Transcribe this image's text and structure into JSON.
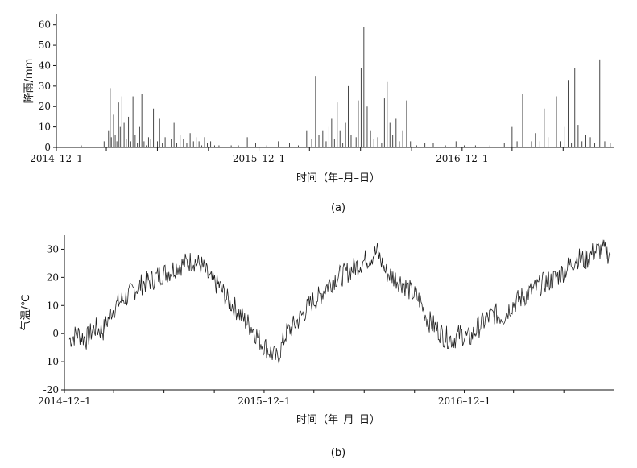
{
  "chart_data": [
    {
      "type": "bar",
      "panel": "(a)",
      "xlabel": "时间（年–月–日）",
      "ylabel": "降雨/mm",
      "ylim": [
        0,
        65
      ],
      "yticks": [
        0,
        10,
        20,
        30,
        40,
        50,
        60
      ],
      "xlim": [
        "2014-12-01",
        "2017-08-31"
      ],
      "xticks": [
        {
          "date": "2014-12-01",
          "label": "2014–12–1"
        },
        {
          "date": "2015-12-01",
          "label": "2015–12–1"
        },
        {
          "date": "2016-12-01",
          "label": "2016–12–1"
        }
      ],
      "grid": false,
      "series": [
        {
          "dates": [
            "2015-01-15",
            "2015-02-05",
            "2015-02-25",
            "2015-03-05",
            "2015-03-08",
            "2015-03-10",
            "2015-03-14",
            "2015-03-17",
            "2015-03-20",
            "2015-03-23",
            "2015-03-26",
            "2015-03-29",
            "2015-04-02",
            "2015-04-06",
            "2015-04-10",
            "2015-04-14",
            "2015-04-18",
            "2015-04-22",
            "2015-04-26",
            "2015-04-30",
            "2015-05-04",
            "2015-05-08",
            "2015-05-12",
            "2015-05-16",
            "2015-05-20",
            "2015-05-25",
            "2015-06-01",
            "2015-06-05",
            "2015-06-10",
            "2015-06-15",
            "2015-06-20",
            "2015-06-26",
            "2015-07-01",
            "2015-07-06",
            "2015-07-12",
            "2015-07-18",
            "2015-07-24",
            "2015-07-30",
            "2015-08-05",
            "2015-08-10",
            "2015-08-15",
            "2015-08-20",
            "2015-08-25",
            "2015-08-30",
            "2015-09-05",
            "2015-09-12",
            "2015-09-20",
            "2015-10-01",
            "2015-10-12",
            "2015-10-25",
            "2015-11-10",
            "2015-11-25",
            "2015-12-15",
            "2016-01-05",
            "2016-01-25",
            "2016-02-10",
            "2016-02-25",
            "2016-03-05",
            "2016-03-12",
            "2016-03-18",
            "2016-03-25",
            "2016-03-31",
            "2016-04-05",
            "2016-04-10",
            "2016-04-15",
            "2016-04-20",
            "2016-04-25",
            "2016-04-30",
            "2016-05-05",
            "2016-05-10",
            "2016-05-15",
            "2016-05-20",
            "2016-05-24",
            "2016-05-28",
            "2016-06-02",
            "2016-06-07",
            "2016-06-13",
            "2016-06-19",
            "2016-06-25",
            "2016-07-02",
            "2016-07-09",
            "2016-07-14",
            "2016-07-19",
            "2016-07-24",
            "2016-07-29",
            "2016-08-04",
            "2016-08-10",
            "2016-08-16",
            "2016-08-23",
            "2016-08-30",
            "2016-09-10",
            "2016-09-25",
            "2016-10-10",
            "2016-11-01",
            "2016-11-20",
            "2016-12-05",
            "2016-12-25",
            "2017-01-20",
            "2017-02-15",
            "2017-03-01",
            "2017-03-10",
            "2017-03-20",
            "2017-03-28",
            "2017-04-05",
            "2017-04-12",
            "2017-04-20",
            "2017-04-28",
            "2017-05-05",
            "2017-05-12",
            "2017-05-20",
            "2017-05-28",
            "2017-06-04",
            "2017-06-10",
            "2017-06-16",
            "2017-06-22",
            "2017-06-28",
            "2017-07-05",
            "2017-07-12",
            "2017-07-20",
            "2017-07-28",
            "2017-08-06",
            "2017-08-15",
            "2017-08-25"
          ],
          "values": [
            1,
            2,
            3,
            8,
            29,
            5,
            16,
            6,
            3,
            22,
            10,
            25,
            12,
            4,
            15,
            3,
            25,
            6,
            2,
            10,
            26,
            3,
            1,
            5,
            4,
            19,
            3,
            14,
            2,
            5,
            26,
            4,
            12,
            2,
            6,
            4,
            2,
            7,
            3,
            5,
            3,
            1,
            5,
            2,
            3,
            1,
            1,
            2,
            1,
            1,
            5,
            2,
            1,
            3,
            2,
            1,
            8,
            4,
            35,
            6,
            8,
            3,
            10,
            14,
            4,
            22,
            8,
            2,
            12,
            30,
            6,
            2,
            5,
            23,
            39,
            59,
            20,
            8,
            4,
            5,
            2,
            24,
            32,
            12,
            6,
            14,
            3,
            8,
            23,
            3,
            1,
            2,
            2,
            1,
            3,
            1,
            1,
            1,
            2,
            10,
            3,
            26,
            4,
            3,
            7,
            3,
            19,
            5,
            2,
            25,
            3,
            10,
            33,
            2,
            39,
            11,
            3,
            6,
            5,
            2,
            43,
            3,
            2
          ]
        }
      ]
    },
    {
      "type": "line",
      "panel": "(b)",
      "xlabel": "时间（年–月–日）",
      "ylabel": "气温/℃",
      "ylim": [
        -20,
        35
      ],
      "yticks": [
        -20,
        -10,
        0,
        10,
        20,
        30
      ],
      "xlim": [
        "2014-12-01",
        "2017-08-31"
      ],
      "xticks": [
        {
          "date": "2014-12-01",
          "label": "2014–12–1"
        },
        {
          "date": "2015-12-01",
          "label": "2015–12–1"
        },
        {
          "date": "2016-12-01",
          "label": "2016–12–1"
        }
      ],
      "grid": false,
      "series": [
        {
          "dates": [
            "2014-12-10",
            "2014-12-25",
            "2015-01-10",
            "2015-01-25",
            "2015-02-10",
            "2015-02-25",
            "2015-03-10",
            "2015-03-25",
            "2015-04-10",
            "2015-04-25",
            "2015-05-10",
            "2015-05-25",
            "2015-06-10",
            "2015-06-25",
            "2015-07-10",
            "2015-07-25",
            "2015-08-10",
            "2015-08-25",
            "2015-09-10",
            "2015-09-25",
            "2015-10-10",
            "2015-10-25",
            "2015-11-10",
            "2015-11-25",
            "2015-12-10",
            "2015-12-25",
            "2016-01-10",
            "2016-01-25",
            "2016-02-10",
            "2016-02-25",
            "2016-03-10",
            "2016-03-25",
            "2016-04-10",
            "2016-04-25",
            "2016-05-10",
            "2016-05-25",
            "2016-06-10",
            "2016-06-25",
            "2016-07-10",
            "2016-07-25",
            "2016-08-10",
            "2016-08-25",
            "2016-09-10",
            "2016-09-25",
            "2016-10-10",
            "2016-10-25",
            "2016-11-10",
            "2016-11-25",
            "2016-12-10",
            "2016-12-25",
            "2017-01-10",
            "2017-01-25",
            "2017-02-10",
            "2017-02-25",
            "2017-03-10",
            "2017-03-25",
            "2017-04-10",
            "2017-04-25",
            "2017-05-10",
            "2017-05-25",
            "2017-06-10",
            "2017-06-25",
            "2017-07-10",
            "2017-07-25",
            "2017-08-10",
            "2017-08-25"
          ],
          "values": [
            -2,
            0,
            -2,
            2,
            1,
            8,
            11,
            13,
            16,
            18,
            19,
            21,
            22,
            24,
            25,
            26,
            24,
            19,
            17,
            12,
            9,
            5,
            2,
            -3,
            -6,
            -9,
            0,
            3,
            7,
            11,
            13,
            17,
            20,
            21,
            23,
            25,
            27,
            29,
            22,
            20,
            18,
            15,
            12,
            5,
            2,
            -1,
            -2,
            0,
            -2,
            2,
            5,
            7,
            6,
            10,
            12,
            14,
            16,
            18,
            19,
            21,
            24,
            27,
            26,
            29,
            30,
            28
          ]
        }
      ]
    }
  ]
}
